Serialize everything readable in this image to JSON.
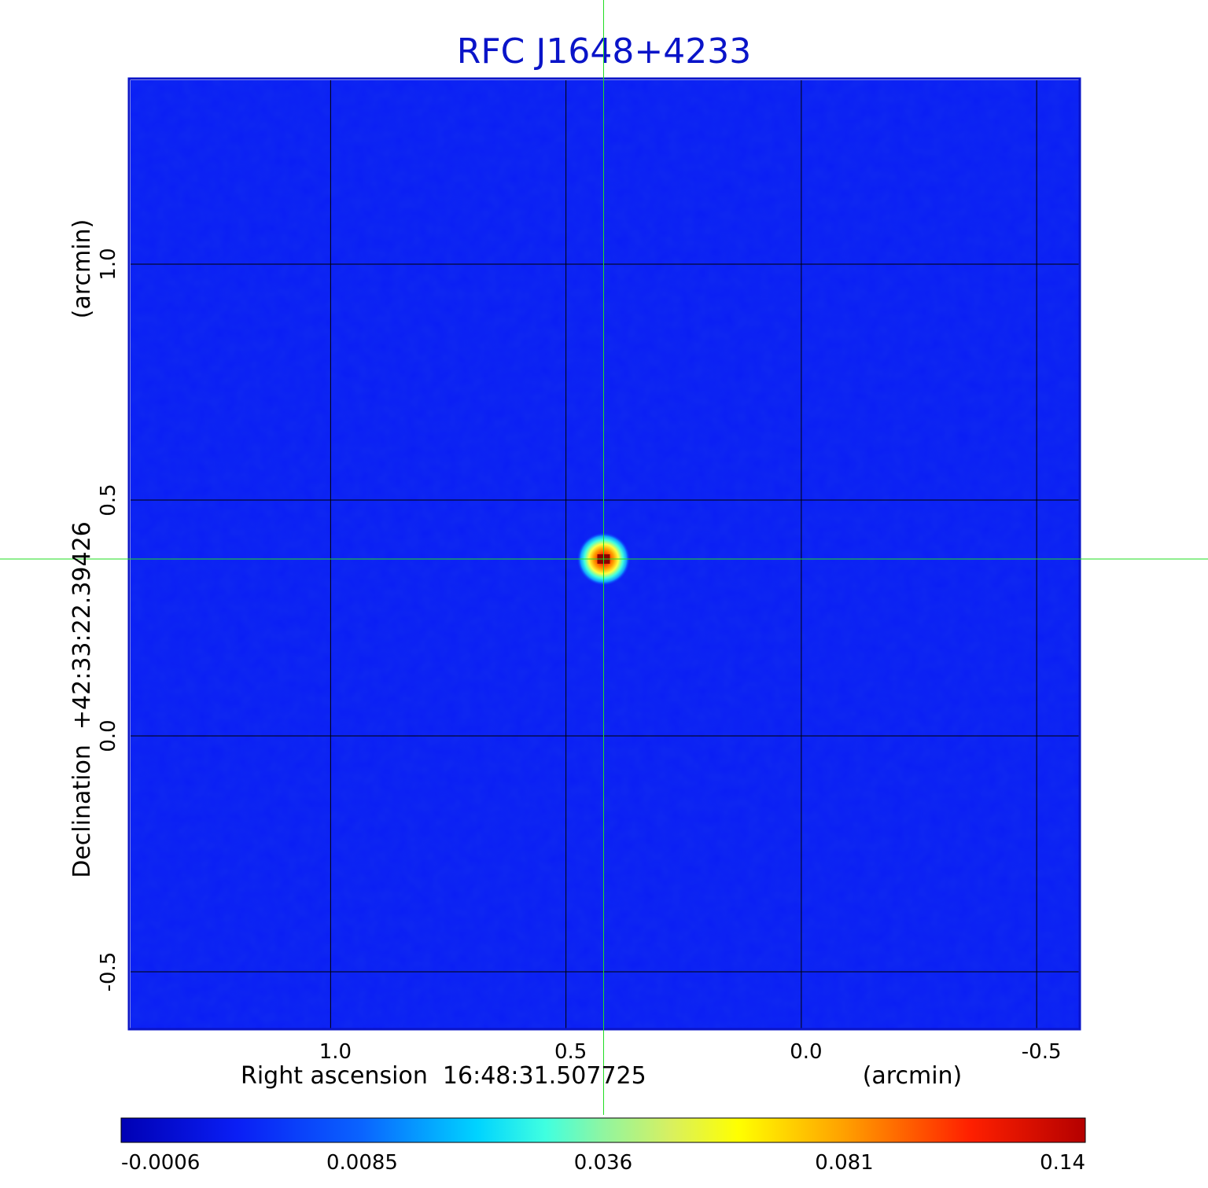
{
  "chart_data": {
    "type": "heatmap",
    "title": "RFC J1648+4233",
    "xlabel": "Right ascension  16:48:31.507725",
    "xunit": "(arcmin)",
    "ylabel": "Declination  +42:33:22.39426",
    "yunit": "(arcmin)",
    "x_ticks": [
      {
        "value": 1.0,
        "label": "1.0"
      },
      {
        "value": 0.5,
        "label": "0.5"
      },
      {
        "value": 0.0,
        "label": "0.0"
      },
      {
        "value": -0.5,
        "label": "-0.5"
      }
    ],
    "y_ticks": [
      {
        "value": 1.0,
        "label": "1.0"
      },
      {
        "value": 0.5,
        "label": "0.5"
      },
      {
        "value": 0.0,
        "label": "0.0"
      },
      {
        "value": -0.5,
        "label": "-0.5"
      }
    ],
    "xlim": [
      1.425,
      -0.59
    ],
    "ylim": [
      -0.62,
      1.39
    ],
    "x_reversed": true,
    "grid": true,
    "colormap": "jet",
    "colorbar": {
      "min": -0.0006,
      "max": 0.14,
      "ticks": [
        {
          "value": -0.0006,
          "label": "-0.0006"
        },
        {
          "value": 0.0085,
          "label": "0.0085"
        },
        {
          "value": 0.036,
          "label": "0.036"
        },
        {
          "value": 0.081,
          "label": "0.081"
        },
        {
          "value": 0.14,
          "label": "0.14"
        }
      ]
    },
    "source": {
      "x": 0.42,
      "y": 0.375,
      "peak": 0.14
    },
    "crosshair": {
      "x": 0.42,
      "y": 0.375,
      "color": "#22dd22"
    }
  },
  "colors": {
    "title": "#0a14c8",
    "frame": "#0a14c8",
    "background_map": "#0a1ef5",
    "grid": "#000000",
    "crosshair": "#22dd22"
  }
}
